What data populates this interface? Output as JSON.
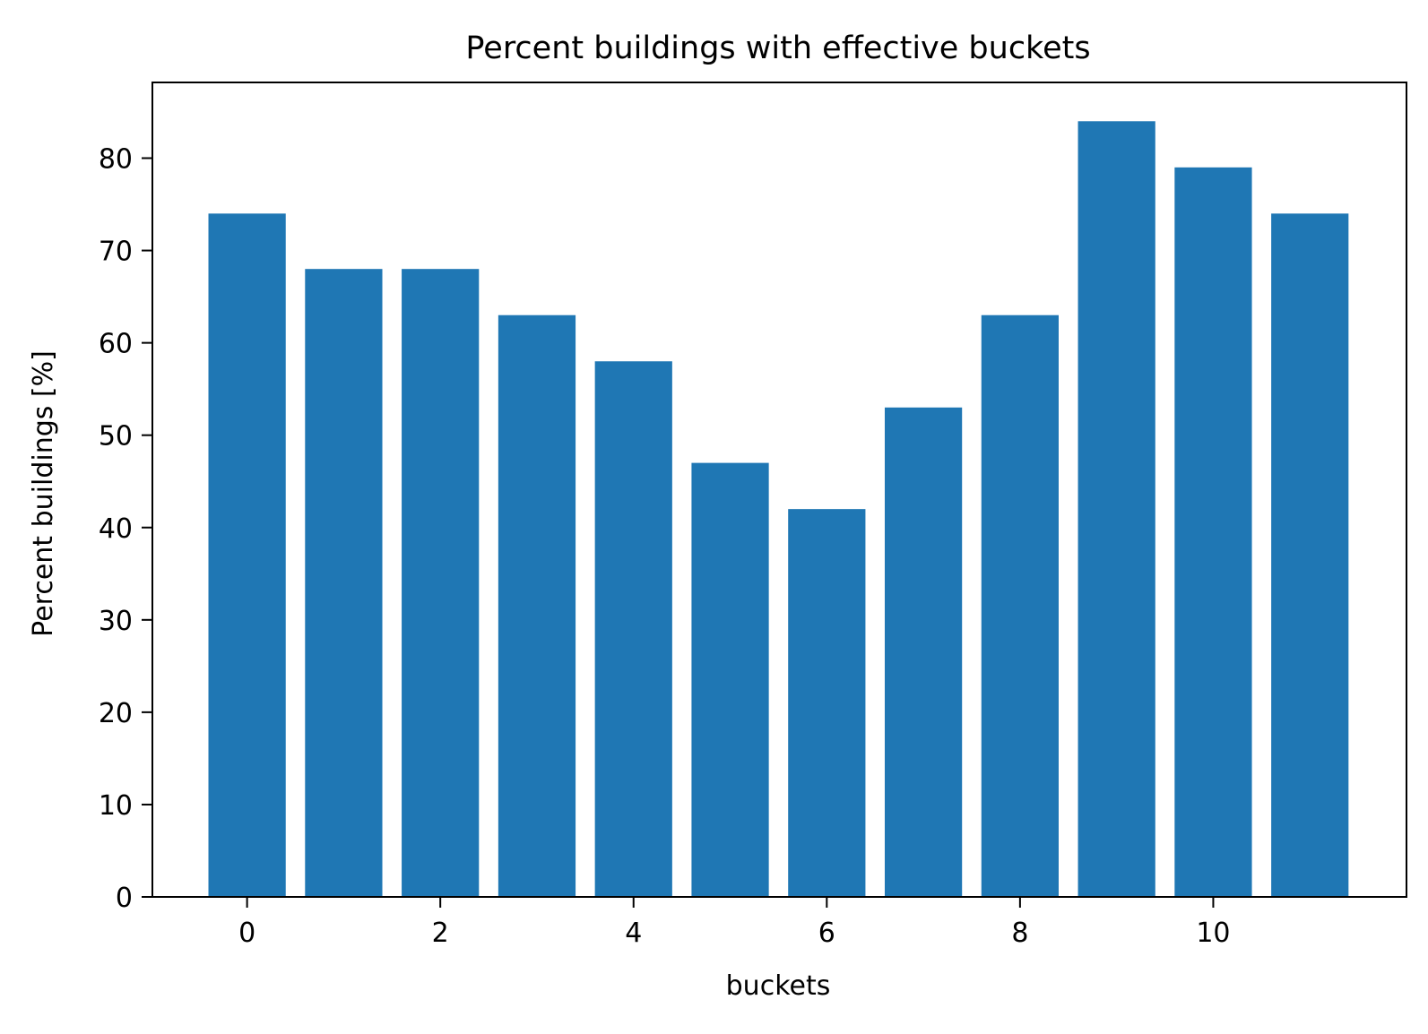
{
  "chart_data": {
    "type": "bar",
    "title": "Percent buildings with effective buckets",
    "xlabel": "buckets",
    "ylabel": "Percent buildings [%]",
    "categories": [
      0,
      1,
      2,
      3,
      4,
      5,
      6,
      7,
      8,
      9,
      10,
      11
    ],
    "values": [
      74,
      68,
      68,
      63,
      58,
      47,
      42,
      53,
      63,
      84,
      79,
      74
    ],
    "xlim": [
      -0.98,
      12.0
    ],
    "ylim": [
      0,
      88.2
    ],
    "xticks": [
      0,
      2,
      4,
      6,
      8,
      10
    ],
    "yticks": [
      0,
      10,
      20,
      30,
      40,
      50,
      60,
      70,
      80
    ],
    "bar_width": 0.8,
    "bar_color": "#1f77b4",
    "grid": false,
    "legend": "none"
  }
}
